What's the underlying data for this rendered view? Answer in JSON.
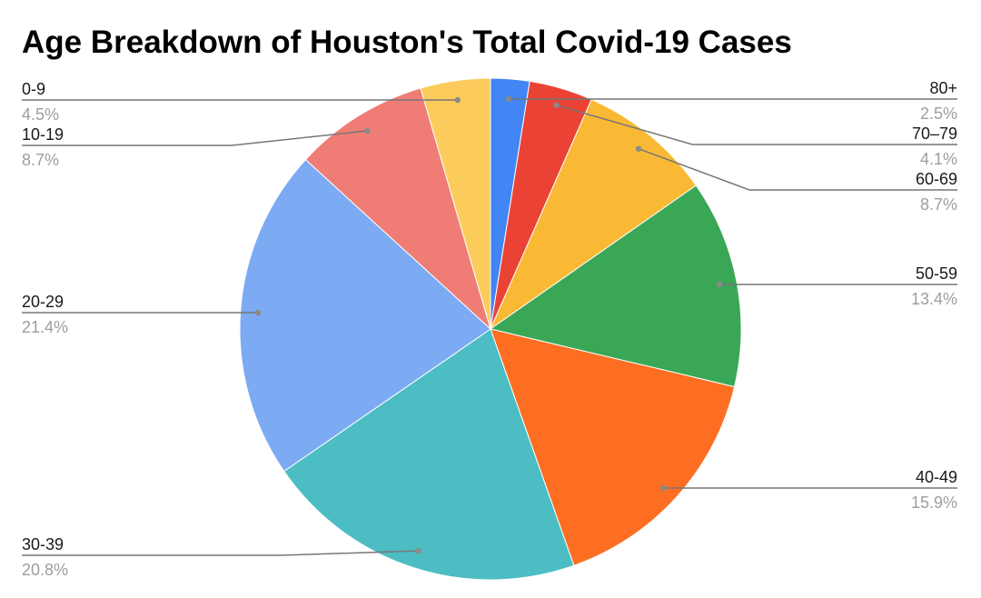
{
  "chart_data": {
    "type": "pie",
    "title": "Age Breakdown of Houston's Total Covid-19 Cases",
    "slices": [
      {
        "label": "80+",
        "value": 2.5,
        "pct_label": "2.5%",
        "color": "#4285f4"
      },
      {
        "label": "70–79",
        "value": 4.1,
        "pct_label": "4.1%",
        "color": "#ea4335"
      },
      {
        "label": "60-69",
        "value": 8.7,
        "pct_label": "8.7%",
        "color": "#f9b934"
      },
      {
        "label": "50-59",
        "value": 13.4,
        "pct_label": "13.4%",
        "color": "#3aa757"
      },
      {
        "label": "40-49",
        "value": 15.9,
        "pct_label": "15.9%",
        "color": "#fd6e22"
      },
      {
        "label": "30-39",
        "value": 20.8,
        "pct_label": "20.8%",
        "color": "#4cbdc3"
      },
      {
        "label": "20-29",
        "value": 21.4,
        "pct_label": "21.4%",
        "color": "#7caaf3"
      },
      {
        "label": "10-19",
        "value": 8.7,
        "pct_label": "8.7%",
        "color": "#ef7d75"
      },
      {
        "label": "0-9",
        "value": 4.5,
        "pct_label": "4.5%",
        "color": "#fbcc5c"
      }
    ],
    "legend": "leader-line labels, left and right of pie"
  }
}
